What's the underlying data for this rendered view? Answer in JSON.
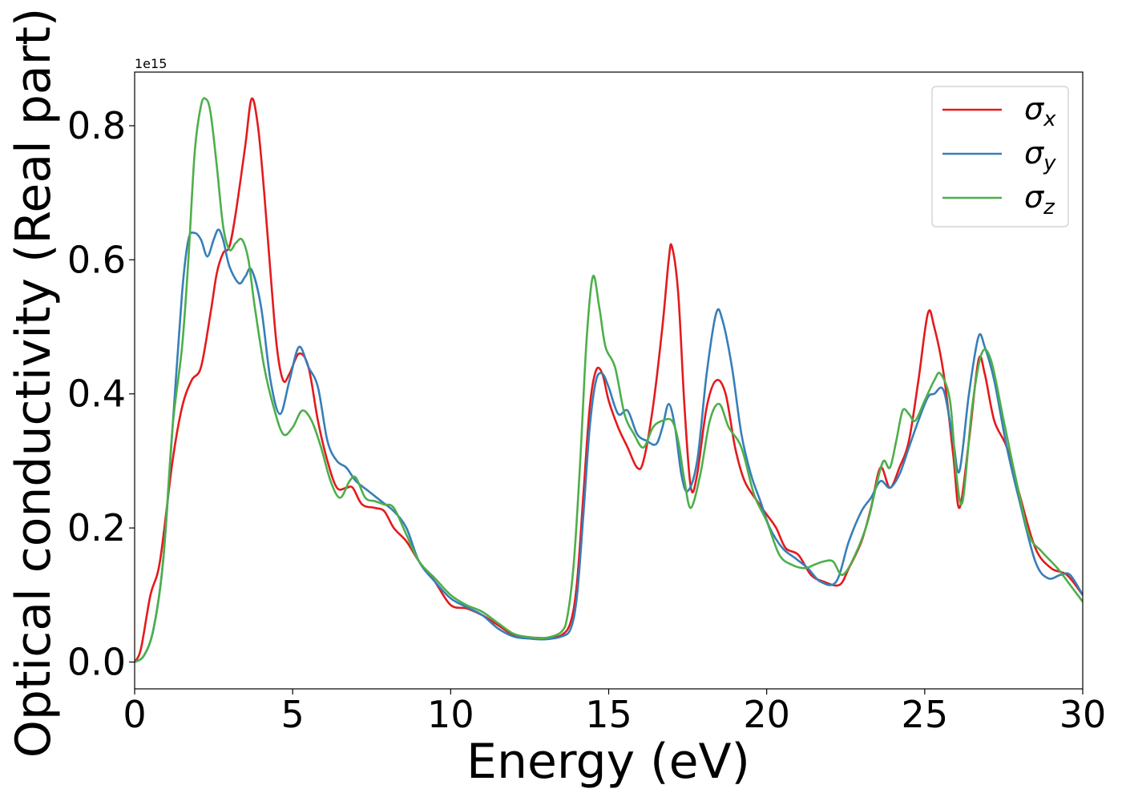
{
  "chart_data": {
    "type": "line",
    "title": "",
    "xlabel": "Energy (eV)",
    "ylabel": "Optical conductivity (Real part)",
    "y_offset_label": "1e15",
    "xlim": [
      0,
      30
    ],
    "ylim": [
      -0.04,
      0.88
    ],
    "xticks": [
      0,
      5,
      10,
      15,
      20,
      25,
      30
    ],
    "xtick_labels": [
      "0",
      "5",
      "10",
      "15",
      "20",
      "25",
      "30"
    ],
    "yticks": [
      0.0,
      0.2,
      0.4,
      0.6,
      0.8
    ],
    "ytick_labels": [
      "0.0",
      "0.2",
      "0.4",
      "0.6",
      "0.8"
    ],
    "grid": false,
    "legend_position": "top-right",
    "series": [
      {
        "name": "σx",
        "symbol": "σ",
        "subscript": "x",
        "color": "#e41a1c",
        "points": [
          [
            0,
            0
          ],
          [
            0.2,
            0.02
          ],
          [
            0.5,
            0.1
          ],
          [
            0.8,
            0.15
          ],
          [
            1.2,
            0.3
          ],
          [
            1.5,
            0.38
          ],
          [
            1.8,
            0.42
          ],
          [
            2.1,
            0.44
          ],
          [
            2.4,
            0.52
          ],
          [
            2.6,
            0.58
          ],
          [
            2.8,
            0.61
          ],
          [
            3.0,
            0.62
          ],
          [
            3.2,
            0.67
          ],
          [
            3.5,
            0.77
          ],
          [
            3.7,
            0.84
          ],
          [
            3.9,
            0.8
          ],
          [
            4.1,
            0.7
          ],
          [
            4.3,
            0.58
          ],
          [
            4.5,
            0.47
          ],
          [
            4.7,
            0.42
          ],
          [
            4.9,
            0.43
          ],
          [
            5.2,
            0.46
          ],
          [
            5.5,
            0.44
          ],
          [
            5.8,
            0.36
          ],
          [
            6.1,
            0.3
          ],
          [
            6.4,
            0.26
          ],
          [
            6.7,
            0.26
          ],
          [
            6.9,
            0.26
          ],
          [
            7.2,
            0.235
          ],
          [
            7.6,
            0.23
          ],
          [
            7.9,
            0.225
          ],
          [
            8.2,
            0.2
          ],
          [
            8.6,
            0.18
          ],
          [
            9.0,
            0.15
          ],
          [
            9.5,
            0.12
          ],
          [
            10.0,
            0.085
          ],
          [
            10.5,
            0.08
          ],
          [
            11.0,
            0.07
          ],
          [
            11.5,
            0.055
          ],
          [
            12.0,
            0.04
          ],
          [
            12.5,
            0.037
          ],
          [
            13.0,
            0.036
          ],
          [
            13.5,
            0.04
          ],
          [
            13.8,
            0.06
          ],
          [
            14.0,
            0.12
          ],
          [
            14.2,
            0.25
          ],
          [
            14.4,
            0.38
          ],
          [
            14.6,
            0.435
          ],
          [
            14.8,
            0.43
          ],
          [
            15.0,
            0.39
          ],
          [
            15.3,
            0.35
          ],
          [
            15.6,
            0.32
          ],
          [
            15.9,
            0.29
          ],
          [
            16.1,
            0.3
          ],
          [
            16.4,
            0.38
          ],
          [
            16.7,
            0.5
          ],
          [
            16.9,
            0.6
          ],
          [
            17.0,
            0.62
          ],
          [
            17.2,
            0.55
          ],
          [
            17.4,
            0.38
          ],
          [
            17.6,
            0.26
          ],
          [
            17.8,
            0.28
          ],
          [
            18.1,
            0.38
          ],
          [
            18.4,
            0.42
          ],
          [
            18.7,
            0.4
          ],
          [
            19.0,
            0.32
          ],
          [
            19.3,
            0.27
          ],
          [
            19.7,
            0.24
          ],
          [
            20.0,
            0.22
          ],
          [
            20.3,
            0.2
          ],
          [
            20.6,
            0.17
          ],
          [
            21.0,
            0.16
          ],
          [
            21.4,
            0.13
          ],
          [
            21.8,
            0.12
          ],
          [
            22.3,
            0.115
          ],
          [
            22.6,
            0.14
          ],
          [
            23.0,
            0.18
          ],
          [
            23.3,
            0.23
          ],
          [
            23.6,
            0.29
          ],
          [
            23.9,
            0.26
          ],
          [
            24.2,
            0.29
          ],
          [
            24.5,
            0.33
          ],
          [
            24.8,
            0.42
          ],
          [
            25.1,
            0.52
          ],
          [
            25.3,
            0.5
          ],
          [
            25.6,
            0.43
          ],
          [
            25.9,
            0.31
          ],
          [
            26.1,
            0.23
          ],
          [
            26.4,
            0.33
          ],
          [
            26.7,
            0.45
          ],
          [
            26.9,
            0.43
          ],
          [
            27.2,
            0.36
          ],
          [
            27.6,
            0.32
          ],
          [
            28.0,
            0.25
          ],
          [
            28.5,
            0.17
          ],
          [
            29.0,
            0.14
          ],
          [
            29.5,
            0.13
          ],
          [
            30.0,
            0.1
          ]
        ]
      },
      {
        "name": "σy",
        "symbol": "σ",
        "subscript": "y",
        "color": "#377eb8",
        "points": [
          [
            0,
            0
          ],
          [
            0.3,
            0.01
          ],
          [
            0.6,
            0.05
          ],
          [
            0.9,
            0.15
          ],
          [
            1.2,
            0.35
          ],
          [
            1.5,
            0.55
          ],
          [
            1.7,
            0.63
          ],
          [
            1.9,
            0.64
          ],
          [
            2.1,
            0.63
          ],
          [
            2.3,
            0.605
          ],
          [
            2.5,
            0.63
          ],
          [
            2.65,
            0.645
          ],
          [
            2.8,
            0.63
          ],
          [
            3.0,
            0.59
          ],
          [
            3.3,
            0.565
          ],
          [
            3.5,
            0.575
          ],
          [
            3.7,
            0.585
          ],
          [
            4.0,
            0.53
          ],
          [
            4.3,
            0.42
          ],
          [
            4.6,
            0.37
          ],
          [
            4.9,
            0.42
          ],
          [
            5.2,
            0.47
          ],
          [
            5.5,
            0.44
          ],
          [
            5.8,
            0.41
          ],
          [
            6.1,
            0.33
          ],
          [
            6.4,
            0.3
          ],
          [
            6.7,
            0.29
          ],
          [
            7.0,
            0.27
          ],
          [
            7.4,
            0.255
          ],
          [
            7.8,
            0.24
          ],
          [
            8.2,
            0.225
          ],
          [
            8.6,
            0.2
          ],
          [
            9.0,
            0.15
          ],
          [
            9.5,
            0.12
          ],
          [
            10.0,
            0.095
          ],
          [
            10.5,
            0.082
          ],
          [
            11.0,
            0.07
          ],
          [
            11.5,
            0.05
          ],
          [
            12.0,
            0.038
          ],
          [
            12.5,
            0.035
          ],
          [
            13.0,
            0.034
          ],
          [
            13.5,
            0.038
          ],
          [
            13.8,
            0.05
          ],
          [
            14.0,
            0.1
          ],
          [
            14.2,
            0.22
          ],
          [
            14.4,
            0.35
          ],
          [
            14.6,
            0.42
          ],
          [
            14.8,
            0.43
          ],
          [
            15.0,
            0.41
          ],
          [
            15.3,
            0.37
          ],
          [
            15.6,
            0.375
          ],
          [
            15.9,
            0.34
          ],
          [
            16.2,
            0.33
          ],
          [
            16.5,
            0.325
          ],
          [
            16.7,
            0.35
          ],
          [
            16.9,
            0.385
          ],
          [
            17.1,
            0.35
          ],
          [
            17.3,
            0.28
          ],
          [
            17.5,
            0.255
          ],
          [
            17.8,
            0.3
          ],
          [
            18.1,
            0.43
          ],
          [
            18.4,
            0.52
          ],
          [
            18.6,
            0.51
          ],
          [
            18.9,
            0.44
          ],
          [
            19.2,
            0.34
          ],
          [
            19.5,
            0.28
          ],
          [
            19.8,
            0.24
          ],
          [
            20.1,
            0.2
          ],
          [
            20.5,
            0.17
          ],
          [
            20.9,
            0.155
          ],
          [
            21.3,
            0.14
          ],
          [
            21.7,
            0.12
          ],
          [
            22.2,
            0.12
          ],
          [
            22.6,
            0.18
          ],
          [
            23.0,
            0.225
          ],
          [
            23.3,
            0.245
          ],
          [
            23.6,
            0.27
          ],
          [
            23.9,
            0.26
          ],
          [
            24.2,
            0.28
          ],
          [
            24.5,
            0.32
          ],
          [
            24.8,
            0.36
          ],
          [
            25.1,
            0.395
          ],
          [
            25.3,
            0.4
          ],
          [
            25.6,
            0.405
          ],
          [
            25.9,
            0.33
          ],
          [
            26.1,
            0.285
          ],
          [
            26.4,
            0.4
          ],
          [
            26.7,
            0.485
          ],
          [
            26.9,
            0.47
          ],
          [
            27.2,
            0.42
          ],
          [
            27.6,
            0.32
          ],
          [
            28.0,
            0.24
          ],
          [
            28.5,
            0.15
          ],
          [
            28.9,
            0.125
          ],
          [
            29.3,
            0.13
          ],
          [
            29.6,
            0.13
          ],
          [
            30.0,
            0.1
          ]
        ]
      },
      {
        "name": "σz",
        "symbol": "σ",
        "subscript": "z",
        "color": "#4daf4a",
        "points": [
          [
            0,
            0
          ],
          [
            0.3,
            0.01
          ],
          [
            0.6,
            0.05
          ],
          [
            0.9,
            0.15
          ],
          [
            1.2,
            0.35
          ],
          [
            1.5,
            0.47
          ],
          [
            1.7,
            0.6
          ],
          [
            1.9,
            0.76
          ],
          [
            2.1,
            0.83
          ],
          [
            2.25,
            0.84
          ],
          [
            2.4,
            0.82
          ],
          [
            2.6,
            0.74
          ],
          [
            2.8,
            0.65
          ],
          [
            3.0,
            0.615
          ],
          [
            3.2,
            0.625
          ],
          [
            3.4,
            0.63
          ],
          [
            3.6,
            0.6
          ],
          [
            3.8,
            0.53
          ],
          [
            4.1,
            0.44
          ],
          [
            4.4,
            0.38
          ],
          [
            4.7,
            0.34
          ],
          [
            5.0,
            0.35
          ],
          [
            5.3,
            0.375
          ],
          [
            5.6,
            0.36
          ],
          [
            5.9,
            0.32
          ],
          [
            6.2,
            0.27
          ],
          [
            6.5,
            0.245
          ],
          [
            6.8,
            0.27
          ],
          [
            7.0,
            0.275
          ],
          [
            7.3,
            0.245
          ],
          [
            7.6,
            0.24
          ],
          [
            7.9,
            0.235
          ],
          [
            8.2,
            0.23
          ],
          [
            8.6,
            0.19
          ],
          [
            9.0,
            0.15
          ],
          [
            9.5,
            0.125
          ],
          [
            10.0,
            0.1
          ],
          [
            10.5,
            0.085
          ],
          [
            11.0,
            0.075
          ],
          [
            11.5,
            0.058
          ],
          [
            12.0,
            0.042
          ],
          [
            12.5,
            0.037
          ],
          [
            13.0,
            0.036
          ],
          [
            13.5,
            0.045
          ],
          [
            13.7,
            0.07
          ],
          [
            13.9,
            0.15
          ],
          [
            14.1,
            0.3
          ],
          [
            14.3,
            0.48
          ],
          [
            14.5,
            0.575
          ],
          [
            14.7,
            0.53
          ],
          [
            14.9,
            0.47
          ],
          [
            15.2,
            0.44
          ],
          [
            15.5,
            0.37
          ],
          [
            15.8,
            0.34
          ],
          [
            16.1,
            0.32
          ],
          [
            16.4,
            0.35
          ],
          [
            16.7,
            0.36
          ],
          [
            17.0,
            0.36
          ],
          [
            17.2,
            0.33
          ],
          [
            17.4,
            0.27
          ],
          [
            17.6,
            0.23
          ],
          [
            17.9,
            0.28
          ],
          [
            18.2,
            0.36
          ],
          [
            18.5,
            0.385
          ],
          [
            18.8,
            0.35
          ],
          [
            19.2,
            0.32
          ],
          [
            19.6,
            0.25
          ],
          [
            20.0,
            0.21
          ],
          [
            20.4,
            0.16
          ],
          [
            20.8,
            0.145
          ],
          [
            21.2,
            0.14
          ],
          [
            21.5,
            0.145
          ],
          [
            21.8,
            0.15
          ],
          [
            22.1,
            0.15
          ],
          [
            22.4,
            0.13
          ],
          [
            22.8,
            0.16
          ],
          [
            23.2,
            0.21
          ],
          [
            23.5,
            0.27
          ],
          [
            23.7,
            0.3
          ],
          [
            23.9,
            0.29
          ],
          [
            24.1,
            0.33
          ],
          [
            24.3,
            0.375
          ],
          [
            24.5,
            0.37
          ],
          [
            24.7,
            0.36
          ],
          [
            25.0,
            0.39
          ],
          [
            25.3,
            0.42
          ],
          [
            25.5,
            0.43
          ],
          [
            25.8,
            0.39
          ],
          [
            26.0,
            0.28
          ],
          [
            26.2,
            0.24
          ],
          [
            26.5,
            0.38
          ],
          [
            26.8,
            0.46
          ],
          [
            27.1,
            0.45
          ],
          [
            27.5,
            0.36
          ],
          [
            27.9,
            0.27
          ],
          [
            28.3,
            0.19
          ],
          [
            28.7,
            0.165
          ],
          [
            29.2,
            0.14
          ],
          [
            29.6,
            0.115
          ],
          [
            30.0,
            0.09
          ]
        ]
      }
    ]
  }
}
